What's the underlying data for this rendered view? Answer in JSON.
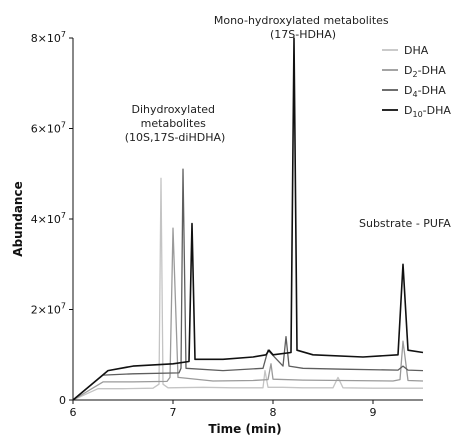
{
  "chart_data": {
    "type": "line",
    "xlabel": "Time (min)",
    "ylabel": "Abundance",
    "xlim": [
      6,
      9.5
    ],
    "ylim": [
      0,
      80000000
    ],
    "xticks": [
      "6",
      "7",
      "8",
      "9"
    ],
    "yticks": [
      {
        "value": 0,
        "label": "0",
        "exp": ""
      },
      {
        "value": 20000000,
        "label": "2×10",
        "exp": "7"
      },
      {
        "value": 40000000,
        "label": "4×10",
        "exp": "7"
      },
      {
        "value": 60000000,
        "label": "6×10",
        "exp": "7"
      },
      {
        "value": 80000000,
        "label": "8×10",
        "exp": "7"
      }
    ],
    "legend_position": "top-right",
    "annotations": [
      {
        "lines": [
          "Mono-hydroxylated metabolites",
          "(17S-HDHA)"
        ]
      },
      {
        "lines": [
          "Dihydroxylated",
          "metabolites",
          "(10S,17S-diHDHA)"
        ]
      },
      {
        "lines": [
          "Substrate - PUFA"
        ]
      }
    ],
    "series": [
      {
        "name": "DHA",
        "name_sub": "",
        "name_suffix": "",
        "color": "#c4c4c4",
        "x": [
          6.0,
          6.25,
          6.5,
          6.8,
          6.86,
          6.88,
          6.9,
          6.95,
          7.3,
          7.6,
          7.9,
          7.92,
          7.95,
          8.1,
          8.3,
          8.6,
          8.65,
          8.7,
          9.0,
          9.3,
          9.5
        ],
        "y": [
          0,
          2500000,
          2500000,
          2600000,
          3500000,
          49000000,
          3500000,
          2700000,
          2800000,
          2700000,
          2700000,
          6500000,
          2800000,
          2800000,
          2700000,
          2700000,
          5000000,
          2700000,
          2600000,
          2600000,
          2600000
        ]
      },
      {
        "name": "D",
        "name_sub": "2",
        "name_suffix": "-DHA",
        "color": "#9a9a9a",
        "x": [
          6.0,
          6.3,
          6.6,
          6.94,
          6.97,
          7.0,
          7.05,
          7.4,
          7.8,
          7.95,
          7.98,
          8.0,
          8.3,
          8.7,
          9.2,
          9.27,
          9.3,
          9.35,
          9.5
        ],
        "y": [
          0,
          4000000,
          4000000,
          4100000,
          5000000,
          38000000,
          5000000,
          4200000,
          4300000,
          4500000,
          8000000,
          4600000,
          4400000,
          4300000,
          4200000,
          4500000,
          13000000,
          4300000,
          4200000
        ]
      },
      {
        "name": "D",
        "name_sub": "4",
        "name_suffix": "-DHA",
        "color": "#5e5e5e",
        "x": [
          6.0,
          6.3,
          6.6,
          7.06,
          7.08,
          7.1,
          7.13,
          7.5,
          7.9,
          7.95,
          8.1,
          8.13,
          8.16,
          8.3,
          8.7,
          9.25,
          9.3,
          9.35,
          9.5
        ],
        "y": [
          0,
          5500000,
          5800000,
          6000000,
          7000000,
          51000000,
          7000000,
          6500000,
          7000000,
          11000000,
          7500000,
          14000000,
          7500000,
          7000000,
          6800000,
          6600000,
          7500000,
          6600000,
          6500000
        ]
      },
      {
        "name": "D",
        "name_sub": "10",
        "name_suffix": "-DHA",
        "color": "#111111",
        "x": [
          6.0,
          6.35,
          6.6,
          7.0,
          7.16,
          7.19,
          7.22,
          7.5,
          7.8,
          7.93,
          7.96,
          8.0,
          8.18,
          8.21,
          8.24,
          8.4,
          8.9,
          9.25,
          9.3,
          9.35,
          9.5
        ],
        "y": [
          0,
          6500000,
          7500000,
          8000000,
          8500000,
          39000000,
          9000000,
          9000000,
          9500000,
          10000000,
          11000000,
          10000000,
          10500000,
          80000000,
          11000000,
          10000000,
          9500000,
          10000000,
          30000000,
          11000000,
          10500000
        ]
      }
    ]
  }
}
